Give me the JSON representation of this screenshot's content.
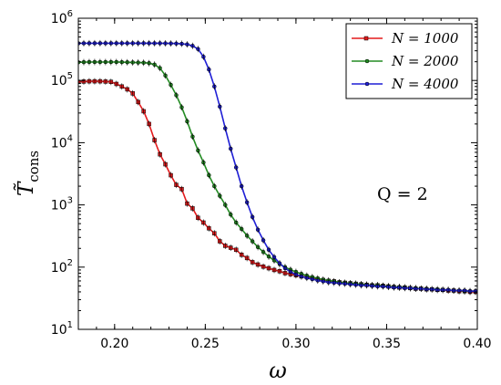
{
  "chart_data": {
    "type": "line",
    "x_label": "ω",
    "y_label": "T̃",
    "y_label_subscript": "cons",
    "xlim": [
      0.18,
      0.4
    ],
    "ylim": [
      10,
      1000000
    ],
    "y_scale": "log",
    "x_ticks": [
      "0.20",
      "0.25",
      "0.30",
      "0.35",
      "0.40"
    ],
    "x_tick_values": [
      0.2,
      0.25,
      0.3,
      0.35,
      0.4
    ],
    "y_tick_values": [
      10,
      100,
      1000,
      10000,
      100000,
      1000000
    ],
    "y_tick_labels": [
      {
        "base": "10",
        "exp": "1"
      },
      {
        "base": "10",
        "exp": "2"
      },
      {
        "base": "10",
        "exp": "3"
      },
      {
        "base": "10",
        "exp": "4"
      },
      {
        "base": "10",
        "exp": "5"
      },
      {
        "base": "10",
        "exp": "6"
      }
    ],
    "annotation": "Q = 2",
    "legend_position": "top-right",
    "series": [
      {
        "name": "N = 1000",
        "color": "#e31a1c",
        "marker": "square",
        "x": [
          0.18,
          0.183,
          0.186,
          0.189,
          0.192,
          0.195,
          0.198,
          0.201,
          0.204,
          0.207,
          0.21,
          0.213,
          0.216,
          0.219,
          0.222,
          0.225,
          0.228,
          0.231,
          0.234,
          0.237,
          0.24,
          0.243,
          0.246,
          0.249,
          0.252,
          0.255,
          0.258,
          0.261,
          0.264,
          0.267,
          0.27,
          0.273,
          0.276,
          0.279,
          0.282,
          0.285,
          0.288,
          0.291,
          0.294,
          0.297,
          0.3,
          0.303,
          0.306,
          0.309,
          0.312,
          0.315,
          0.318,
          0.321,
          0.324,
          0.327,
          0.33,
          0.333,
          0.336,
          0.339,
          0.342,
          0.345,
          0.348,
          0.351,
          0.354,
          0.357,
          0.36,
          0.363,
          0.366,
          0.369,
          0.372,
          0.375,
          0.378,
          0.381,
          0.384,
          0.387,
          0.39,
          0.393,
          0.396,
          0.399
        ],
        "y": [
          95000,
          96000,
          97000,
          97000,
          97000,
          96000,
          95000,
          88000,
          80000,
          72000,
          62000,
          45000,
          32000,
          20000,
          11000,
          6500,
          4500,
          3000,
          2100,
          1800,
          1050,
          880,
          620,
          520,
          420,
          350,
          260,
          220,
          205,
          190,
          158,
          140,
          120,
          110,
          102,
          96,
          90,
          86,
          80,
          77,
          74,
          71,
          69,
          67,
          64,
          62,
          60,
          59,
          57,
          56,
          55,
          54,
          53,
          52,
          51,
          51,
          50,
          49,
          48,
          47,
          47,
          46,
          45,
          45,
          44,
          44,
          43,
          43,
          42,
          42,
          41,
          41,
          40,
          40
        ]
      },
      {
        "name": "N = 2000",
        "color": "#238b23",
        "marker": "circle",
        "x": [
          0.18,
          0.183,
          0.186,
          0.189,
          0.192,
          0.195,
          0.198,
          0.201,
          0.204,
          0.207,
          0.21,
          0.213,
          0.216,
          0.219,
          0.222,
          0.225,
          0.228,
          0.231,
          0.234,
          0.237,
          0.24,
          0.243,
          0.246,
          0.249,
          0.252,
          0.255,
          0.258,
          0.261,
          0.264,
          0.267,
          0.27,
          0.273,
          0.276,
          0.279,
          0.282,
          0.285,
          0.288,
          0.291,
          0.294,
          0.297,
          0.3,
          0.303,
          0.306,
          0.309,
          0.312,
          0.315,
          0.318,
          0.321,
          0.324,
          0.327,
          0.33,
          0.333,
          0.336,
          0.339,
          0.342,
          0.345,
          0.348,
          0.351,
          0.354,
          0.357,
          0.36,
          0.363,
          0.366,
          0.369,
          0.372,
          0.375,
          0.378,
          0.381,
          0.384,
          0.387,
          0.39,
          0.393,
          0.396,
          0.399
        ],
        "y": [
          196000,
          197000,
          198000,
          198000,
          198000,
          198000,
          198000,
          198000,
          197000,
          196000,
          195000,
          194000,
          193000,
          190000,
          180000,
          158000,
          120000,
          85000,
          58000,
          37000,
          22000,
          12500,
          7500,
          4800,
          3000,
          2000,
          1400,
          1000,
          700,
          520,
          410,
          320,
          260,
          210,
          175,
          148,
          128,
          112,
          100,
          91,
          84,
          78,
          73,
          69,
          66,
          63,
          61,
          59,
          57,
          56,
          55,
          54,
          53,
          52,
          51,
          51,
          50,
          49,
          48,
          48,
          47,
          46,
          46,
          45,
          45,
          44,
          44,
          43,
          43,
          42,
          42,
          41,
          41,
          41
        ]
      },
      {
        "name": "N = 4000",
        "color": "#1f1fd6",
        "marker": "circle",
        "x": [
          0.18,
          0.183,
          0.186,
          0.189,
          0.192,
          0.195,
          0.198,
          0.201,
          0.204,
          0.207,
          0.21,
          0.213,
          0.216,
          0.219,
          0.222,
          0.225,
          0.228,
          0.231,
          0.234,
          0.237,
          0.24,
          0.243,
          0.246,
          0.249,
          0.252,
          0.255,
          0.258,
          0.261,
          0.264,
          0.267,
          0.27,
          0.273,
          0.276,
          0.279,
          0.282,
          0.285,
          0.288,
          0.291,
          0.294,
          0.297,
          0.3,
          0.303,
          0.306,
          0.309,
          0.312,
          0.315,
          0.318,
          0.321,
          0.324,
          0.327,
          0.33,
          0.333,
          0.336,
          0.339,
          0.342,
          0.345,
          0.348,
          0.351,
          0.354,
          0.357,
          0.36,
          0.363,
          0.366,
          0.369,
          0.372,
          0.375,
          0.378,
          0.381,
          0.384,
          0.387,
          0.39,
          0.393,
          0.396,
          0.399
        ],
        "y": [
          395000,
          396000,
          397000,
          397000,
          397000,
          397000,
          397000,
          397000,
          397000,
          397000,
          397000,
          397000,
          397000,
          397000,
          396000,
          396000,
          395000,
          394000,
          392000,
          388000,
          380000,
          360000,
          320000,
          240000,
          150000,
          80000,
          38000,
          17000,
          8000,
          4000,
          2000,
          1100,
          640,
          400,
          270,
          190,
          145,
          115,
          96,
          84,
          76,
          71,
          67,
          64,
          61,
          59,
          57,
          56,
          55,
          54,
          53,
          52,
          51,
          51,
          50,
          49,
          49,
          48,
          47,
          47,
          46,
          46,
          45,
          45,
          44,
          44,
          43,
          43,
          43,
          42,
          42,
          42,
          41,
          41
        ]
      }
    ]
  }
}
